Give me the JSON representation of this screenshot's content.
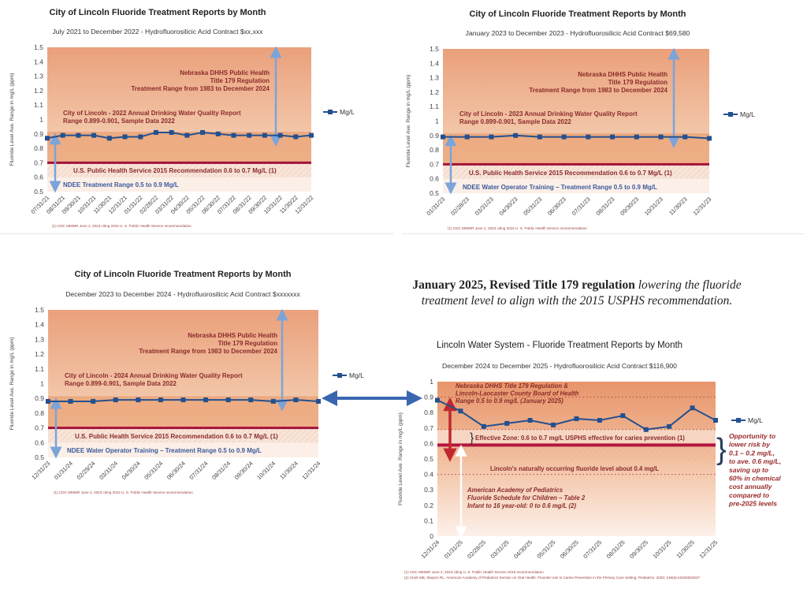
{
  "headline": {
    "bold": "January 2025, Revised Title 179 regulation",
    "italic_1": "lowering the fluoride",
    "italic_2": "treatment level to align with the 2015 USPHS recommendation."
  },
  "colors": {
    "series": "#24508f",
    "regulation_arrow": "#7ba4d9",
    "usphs_line": "#a3123a",
    "annotation_text": "#8b2b2b",
    "ndee_text": "#3b5a9a",
    "connector_arrow": "#3a66b0"
  },
  "chart_data": [
    {
      "type": "line",
      "title": "City of Lincoln Fluoride Treatment Reports by Month",
      "subtitle": "July 2021 to December 2022 - Hydrofluorosilicic Acid Contract $xx,xxx",
      "ylabel": "Fluoride Level Ave. Range in mg/L (ppm)",
      "ylim": [
        0.5,
        1.5
      ],
      "legend": "right",
      "categories": [
        "07/31/21",
        "08/31/21",
        "09/30/21",
        "10/31/21",
        "11/30/21",
        "12/31/21",
        "01/31/22",
        "02/28/22",
        "03/31/22",
        "04/30/22",
        "05/31/22",
        "06/30/22",
        "07/31/22",
        "08/31/22",
        "09/30/22",
        "10/31/22",
        "11/30/22",
        "12/31/22"
      ],
      "series": [
        {
          "name": "Mg/L",
          "values": [
            0.87,
            0.89,
            0.89,
            0.89,
            0.87,
            0.88,
            0.88,
            0.91,
            0.91,
            0.89,
            0.91,
            0.9,
            0.89,
            0.89,
            0.89,
            0.89,
            0.88,
            0.89
          ]
        }
      ],
      "annotations": {
        "regulation": [
          "Nebraska DHHS Public Health",
          "Title 179 Regulation",
          "Treatment Range from 1983 to December 2024"
        ],
        "report": [
          "City of Lincoln - 2022 Annual Drinking Water Quality Report",
          "Range 0.899-0.901, Sample Data 2022"
        ],
        "usphs": "U.S. Public Health Service 2015 Recommendation 0.6 to 0.7 Mg/L (1)",
        "ndee": "NDEE  Treatment Range 0.5 to 0.9 Mg/L"
      },
      "footnotes": [
        "(1) CDC MMWR June 2, 2023 citing 2015 U. S. Public Health Service recommendation"
      ]
    },
    {
      "type": "line",
      "title": "City of Lincoln Fluoride Treatment Reports by Month",
      "subtitle": "January 2023 to December 2023 - Hydrofluorosilicic Acid Contract $69,580",
      "ylabel": "Fluoride Level Ave. Range in mg/L (ppm)",
      "ylim": [
        0.5,
        1.5
      ],
      "legend": "right",
      "categories": [
        "01/31/23",
        "02/28/23",
        "03/31/23",
        "04/30/23",
        "05/31/23",
        "06/30/23",
        "07/31/23",
        "08/31/23",
        "09/30/23",
        "10/31/23",
        "11/30/23",
        "12/31/23"
      ],
      "series": [
        {
          "name": "Mg/L",
          "values": [
            0.89,
            0.89,
            0.89,
            0.9,
            0.89,
            0.89,
            0.89,
            0.89,
            0.89,
            0.89,
            0.89,
            0.88
          ]
        }
      ],
      "annotations": {
        "regulation": [
          "Nebraska DHHS Public Health",
          "Title 179 Regulation",
          "Treatment Range from 1983 to December 2024"
        ],
        "report": [
          "City of Lincoln - 2023 Annual Drinking Water Quality Report",
          "Range 0.899-0.901, Sample Data 2022"
        ],
        "usphs": "U.S. Public Health Service 2015 Recommendation 0.6 to 0.7 Mg/L (1)",
        "ndee": "NDEE Water Operator Training – Treatment Range 0.5 to 0.9 Mg/L"
      },
      "footnotes": [
        "(1) CDC MMWR June 2, 2023 citing 2015 U. S. Public Health Service recommendation"
      ]
    },
    {
      "type": "line",
      "title": "City of Lincoln Fluoride Treatment Reports by Month",
      "subtitle": "December 2023 to December 2024 - Hydrofluorosilicic Acid Contract $xxxxxxx",
      "ylabel": "Fluoride Level Ave. Range in mg/L (ppm)",
      "ylim": [
        0.5,
        1.5
      ],
      "legend": "right",
      "categories": [
        "12/31/23",
        "01/31/24",
        "02/29/24",
        "03/31/24",
        "04/30/24",
        "05/31/24",
        "06/30/24",
        "07/31/24",
        "08/31/24",
        "09/30/24",
        "10/31/24",
        "11/30/24",
        "12/31/24"
      ],
      "series": [
        {
          "name": "Mg/L",
          "values": [
            0.88,
            0.88,
            0.88,
            0.89,
            0.89,
            0.89,
            0.89,
            0.89,
            0.89,
            0.89,
            0.88,
            0.89,
            0.88
          ]
        }
      ],
      "annotations": {
        "regulation": [
          "Nebraska DHHS Public Health",
          "Title 179 Regulation",
          "Treatment Range from 1983 to December 2024"
        ],
        "report": [
          "City of Lincoln - 2024 Annual Drinking Water Quality Report",
          "Range 0.899-0.901, Sample Data 2022"
        ],
        "usphs": "U.S. Public Health Service 2015 Recommendation 0.6 to 0.7 Mg/L (1)",
        "ndee": "NDEE Water Operator Training – Treatment Range 0.5 to 0.9 Mg/L"
      },
      "footnotes": [
        "(1) CDC MMWR June 2, 2023 citing 2015 U. S. Public Health Service recommendation"
      ]
    },
    {
      "type": "line",
      "title": "Lincoln Water System - Fluoride Treatment Reports by Month",
      "subtitle": "December 2024 to December 2025 - Hydrofluorosilicic Acid Contract $116,900",
      "ylabel": "Fluoride Level Ave. Range in mg/L (ppm)",
      "ylim": [
        0,
        1
      ],
      "legend": "right",
      "categories": [
        "12/31/24",
        "01/31/25",
        "02/28/25",
        "03/31/25",
        "04/30/25",
        "05/31/25",
        "06/30/25",
        "07/31/25",
        "08/31/25",
        "09/30/25",
        "10/31/25",
        "11/30/25",
        "12/31/25"
      ],
      "series": [
        {
          "name": "Mg/L",
          "values": [
            0.88,
            0.81,
            0.71,
            0.73,
            0.75,
            0.72,
            0.76,
            0.75,
            0.78,
            0.69,
            0.71,
            0.83,
            0.75
          ]
        }
      ],
      "annotations": {
        "regulation": [
          "Nebraska DHHS Title 179 Regulation &",
          "Lincoln-Laocaster County Board of Health",
          "Range 0.5 to 0.9 mg/L (January 2025)"
        ],
        "effective": "Effective Zone: 0.6 to 0.7 mg/L USPHS effective for caries  prevention (1)",
        "natural": "Lincoln's naturally occurring fluoride level about 0.4 mg/L",
        "aap": [
          "American Academy of Pediatrics",
          "Fluoride Schedule for Children – Table 2",
          "Infant to 16 year-old: 0 to 0.6 mg/L (2)"
        ],
        "opportunity": [
          "Opportunity to",
          "lower risk by",
          "0.1 – 0.2 mg/L,",
          "to ave. 0.6 mg/L,",
          "saving up to",
          "60% in chemical",
          "cost annually",
          "compared to",
          "pre-2025 levels"
        ]
      },
      "footnotes": [
        "(1) CDC MMWR June 2, 2023 citing U. S. Public Health Service 2015 recommendation",
        "(2) Clark MB, Slayton RL. American Academy of Pediatrics Section on Oral Health. Fluoride Use in Caries Prevention in the Primary Care Setting. Pediatrics. 2020; 146(6):e2020034637"
      ]
    }
  ]
}
